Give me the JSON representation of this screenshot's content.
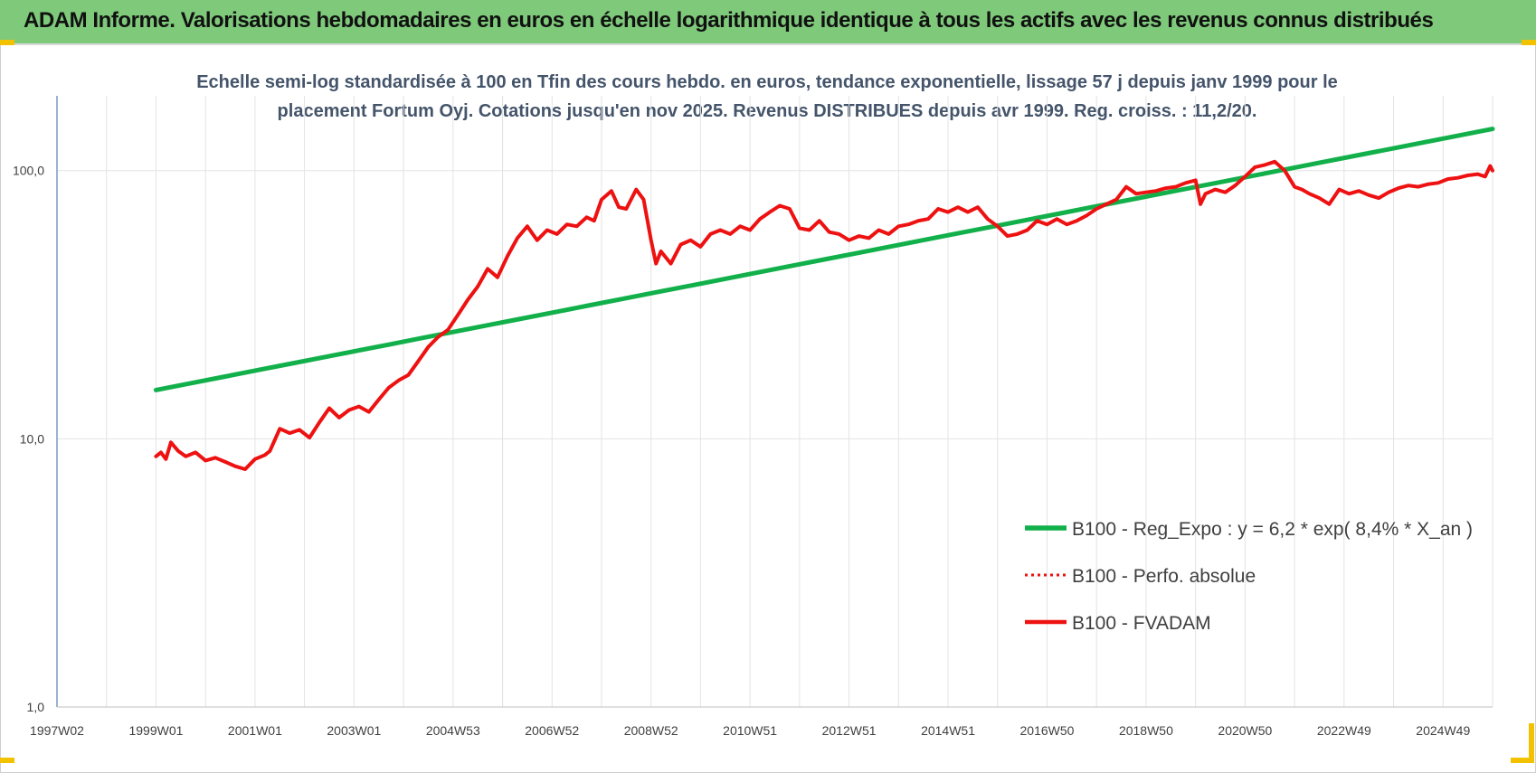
{
  "banner": {
    "title": "ADAM Informe. Valorisations hebdomadaires en euros en échelle logarithmique identique à tous les actifs avec les revenus connus distribués"
  },
  "colors": {
    "banner_bg": "#7ec97a",
    "regression_line": "#11b04a",
    "fvadam_line": "#ee1111",
    "perfo_line": "#ee1111",
    "subtitle_text": "#44546a",
    "corner_marks": "#f2c200"
  },
  "chart_data": {
    "type": "line",
    "subtitle": [
      "Echelle semi-log standardisée à 100 en Tfin des cours hebdo. en euros, tendance exponentielle, lissage 57 j depuis janv 1999 pour le",
      "placement Fortum Oyj. Cotations jusqu'en nov 2025. Revenus DISTRIBUES depuis avr 1999. Reg. croiss. : 11,2/20."
    ],
    "y_scale": "log",
    "ylim": [
      1,
      190
    ],
    "xlim": [
      1997.0,
      2026.0
    ],
    "y_ticks": [
      {
        "value": 1,
        "label": "1,0"
      },
      {
        "value": 10,
        "label": "10,0"
      },
      {
        "value": 100,
        "label": "100,0"
      }
    ],
    "x_ticks": [
      {
        "value": 1997.0,
        "label": "1997W02"
      },
      {
        "value": 1999.0,
        "label": "1999W01"
      },
      {
        "value": 2001.0,
        "label": "2001W01"
      },
      {
        "value": 2003.0,
        "label": "2003W01"
      },
      {
        "value": 2005.0,
        "label": "2004W53"
      },
      {
        "value": 2007.0,
        "label": "2006W52"
      },
      {
        "value": 2009.0,
        "label": "2008W52"
      },
      {
        "value": 2011.0,
        "label": "2010W51"
      },
      {
        "value": 2013.0,
        "label": "2012W51"
      },
      {
        "value": 2015.0,
        "label": "2014W51"
      },
      {
        "value": 2017.0,
        "label": "2016W50"
      },
      {
        "value": 2019.0,
        "label": "2018W50"
      },
      {
        "value": 2021.0,
        "label": "2020W50"
      },
      {
        "value": 2023.0,
        "label": "2022W49"
      },
      {
        "value": 2025.0,
        "label": "2024W49"
      }
    ],
    "grid": "vertical-every-year-and-horizontal-at-decades",
    "legend_position": "lower-right",
    "series": [
      {
        "name": "B100 - Reg_Expo : y = 6,2 * exp( 8,4% *  X_an )",
        "style": "solid-green",
        "x": [
          1999.0,
          2026.0
        ],
        "y": [
          15.2,
          143
        ]
      },
      {
        "name": "B100 - Perfo. absolue",
        "style": "dotted-red",
        "x": [],
        "y": []
      },
      {
        "name": "B100 - FVADAM",
        "style": "solid-red",
        "x": [
          1999.0,
          1999.1,
          1999.2,
          1999.3,
          1999.45,
          1999.6,
          1999.8,
          2000.0,
          2000.2,
          2000.4,
          2000.6,
          2000.8,
          2001.0,
          2001.2,
          2001.3,
          2001.5,
          2001.7,
          2001.9,
          2002.1,
          2002.3,
          2002.5,
          2002.7,
          2002.9,
          2003.1,
          2003.3,
          2003.5,
          2003.7,
          2003.9,
          2004.1,
          2004.3,
          2004.5,
          2004.7,
          2004.9,
          2005.1,
          2005.3,
          2005.5,
          2005.7,
          2005.9,
          2006.1,
          2006.3,
          2006.5,
          2006.7,
          2006.9,
          2007.1,
          2007.3,
          2007.5,
          2007.7,
          2007.85,
          2008.0,
          2008.2,
          2008.35,
          2008.5,
          2008.7,
          2008.85,
          2009.0,
          2009.1,
          2009.2,
          2009.4,
          2009.6,
          2009.8,
          2010.0,
          2010.2,
          2010.4,
          2010.6,
          2010.8,
          2011.0,
          2011.2,
          2011.4,
          2011.6,
          2011.8,
          2012.0,
          2012.2,
          2012.4,
          2012.6,
          2012.8,
          2013.0,
          2013.2,
          2013.4,
          2013.6,
          2013.8,
          2014.0,
          2014.2,
          2014.4,
          2014.6,
          2014.8,
          2015.0,
          2015.2,
          2015.4,
          2015.6,
          2015.8,
          2016.0,
          2016.2,
          2016.4,
          2016.6,
          2016.8,
          2017.0,
          2017.2,
          2017.4,
          2017.6,
          2017.8,
          2018.0,
          2018.2,
          2018.4,
          2018.6,
          2018.8,
          2019.0,
          2019.2,
          2019.4,
          2019.6,
          2019.8,
          2020.0,
          2020.1,
          2020.2,
          2020.4,
          2020.6,
          2020.8,
          2021.0,
          2021.2,
          2021.4,
          2021.6,
          2021.8,
          2022.0,
          2022.15,
          2022.3,
          2022.5,
          2022.7,
          2022.9,
          2023.1,
          2023.3,
          2023.5,
          2023.7,
          2023.9,
          2024.1,
          2024.3,
          2024.5,
          2024.7,
          2024.9,
          2025.1,
          2025.3,
          2025.5,
          2025.7,
          2025.85,
          2025.95,
          2026.0
        ],
        "y": [
          8.6,
          8.9,
          8.4,
          9.7,
          9.0,
          8.6,
          8.9,
          8.3,
          8.5,
          8.2,
          7.9,
          7.7,
          8.4,
          8.7,
          9.0,
          10.9,
          10.5,
          10.8,
          10.1,
          11.5,
          13.0,
          12.0,
          12.8,
          13.2,
          12.6,
          14.0,
          15.5,
          16.5,
          17.3,
          19.5,
          22.0,
          24.0,
          25.5,
          29.0,
          33.0,
          37.0,
          43.0,
          40.0,
          48.0,
          56.0,
          62.0,
          55.0,
          60.0,
          58.0,
          63.0,
          62.0,
          67.0,
          65.0,
          78.0,
          84.0,
          73.0,
          72.0,
          85.0,
          78.0,
          55.0,
          45.0,
          50.0,
          45.0,
          53.0,
          55.0,
          52.0,
          58.0,
          60.0,
          58.0,
          62.0,
          60.0,
          66.0,
          70.0,
          74.0,
          72.0,
          61.0,
          60.0,
          65.0,
          59.0,
          58.0,
          55.0,
          57.0,
          56.0,
          60.0,
          58.0,
          62.0,
          63.0,
          65.0,
          66.0,
          72.0,
          70.0,
          73.0,
          70.0,
          73.0,
          66.0,
          62.0,
          57.0,
          58.0,
          60.0,
          65.0,
          63.0,
          66.0,
          63.0,
          65.0,
          68.0,
          72.0,
          75.0,
          78.0,
          87.0,
          82.0,
          83.0,
          84.0,
          86.0,
          87.0,
          90.0,
          92.0,
          75.0,
          82.0,
          85.0,
          83.0,
          88.0,
          95.0,
          103.0,
          105.0,
          108.0,
          100.0,
          87.0,
          85.0,
          82.0,
          79.0,
          75.0,
          85.0,
          82.0,
          84.0,
          81.0,
          79.0,
          83.0,
          86.0,
          88.0,
          87.0,
          89.0,
          90.0,
          93.0,
          94.0,
          96.0,
          97.0,
          95.0,
          104.0,
          100.0
        ]
      }
    ]
  }
}
